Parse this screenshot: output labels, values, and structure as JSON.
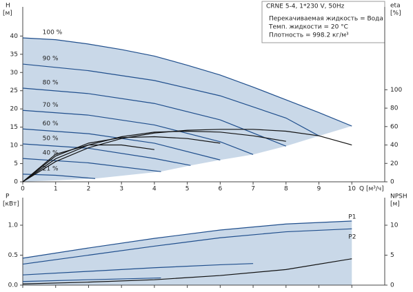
{
  "chart_data": [
    {
      "type": "line",
      "title": "CRNE 5-4, 1*230 V, 50Hz",
      "annotations": [
        "Перекачиваемая жидкость = Вода",
        "Темп. жидкости = 20 °C",
        "Плотность = 998.2 кг/м³"
      ],
      "y_label": "H",
      "y_unit": "[м]",
      "y2_label": "eta",
      "y2_unit": "[%]",
      "x_label": "Q [м³/ч]",
      "xlim": [
        0,
        11
      ],
      "xticks": [
        0,
        1,
        2,
        3,
        4,
        5,
        6,
        7,
        8,
        9,
        10
      ],
      "ylim": [
        0,
        48
      ],
      "yticks": [
        0,
        5,
        10,
        15,
        20,
        25,
        30,
        35,
        40
      ],
      "y2lim": [
        0,
        190
      ],
      "y2ticks": [
        0,
        20,
        40,
        60,
        80,
        100
      ],
      "fill_color": "#c9d8e8",
      "series": [
        {
          "name": "100 %",
          "color": "#1f4e8c",
          "x": [
            0,
            1,
            2,
            3,
            4,
            5,
            6,
            7,
            8,
            9,
            10
          ],
          "values": [
            39.5,
            39,
            37.8,
            36.3,
            34.5,
            32,
            29.3,
            26,
            22.5,
            19,
            15.3
          ]
        },
        {
          "name": "90 %",
          "color": "#1f4e8c",
          "x": [
            0,
            2,
            4,
            6,
            8,
            9
          ],
          "values": [
            32.3,
            30.5,
            27.8,
            23.6,
            17.5,
            12.6
          ]
        },
        {
          "name": "80 %",
          "color": "#1f4e8c",
          "x": [
            0,
            2,
            4,
            6,
            8
          ],
          "values": [
            25.7,
            24.2,
            21.5,
            17,
            9.8
          ]
        },
        {
          "name": "70 %",
          "color": "#1f4e8c",
          "x": [
            0,
            2,
            4,
            6,
            7
          ],
          "values": [
            19.6,
            18.3,
            15.6,
            11,
            7.5
          ]
        },
        {
          "name": "60 %",
          "color": "#1f4e8c",
          "x": [
            0,
            2,
            4,
            6
          ],
          "values": [
            14.5,
            13.2,
            10.6,
            6
          ]
        },
        {
          "name": "50 %",
          "color": "#1f4e8c",
          "x": [
            0,
            2,
            4,
            5.1
          ],
          "values": [
            10.4,
            9.2,
            6.4,
            4.5
          ]
        },
        {
          "name": "40 %",
          "color": "#1f4e8c",
          "x": [
            0,
            2,
            4.2
          ],
          "values": [
            6.4,
            5.2,
            2.8
          ]
        },
        {
          "name": "21 %",
          "color": "#1f4e8c",
          "x": [
            0,
            1,
            2.2
          ],
          "values": [
            2.1,
            1.8,
            0.9
          ]
        },
        {
          "color": "#111111",
          "axis": "y2",
          "x": [
            0,
            1,
            2,
            3,
            4,
            5,
            6,
            7,
            8,
            9,
            10
          ],
          "values": [
            0,
            22,
            37,
            47,
            53,
            56,
            57,
            57,
            55,
            50,
            40
          ]
        },
        {
          "color": "#111111",
          "axis": "y2",
          "x": [
            0,
            1,
            2,
            3,
            4,
            5,
            6,
            7,
            8
          ],
          "values": [
            0,
            25,
            40,
            49,
            54,
            55,
            54,
            50,
            44
          ]
        },
        {
          "color": "#111111",
          "axis": "y2",
          "x": [
            0,
            1,
            2,
            3,
            4,
            5,
            6
          ],
          "values": [
            0,
            28,
            42,
            48,
            49,
            47,
            42
          ]
        },
        {
          "color": "#111111",
          "axis": "y2",
          "x": [
            0,
            1,
            2,
            3,
            4
          ],
          "values": [
            0,
            30,
            40,
            40,
            35
          ]
        }
      ]
    },
    {
      "type": "line",
      "y_label": "P",
      "y_unit": "[кВт]",
      "y2_label": "NPSH",
      "y2_unit": "[м]",
      "xlim": [
        0,
        11
      ],
      "xticks": [
        0,
        1,
        2,
        3,
        4,
        5,
        6,
        7,
        8,
        9,
        10
      ],
      "ylim": [
        0,
        1.46
      ],
      "yticks": [
        {
          "value": 0,
          "label": "0.0"
        },
        0.5,
        {
          "value": 1,
          "label": "1.0"
        }
      ],
      "y2lim": [
        0,
        14.6
      ],
      "y2ticks": [
        0,
        5,
        10
      ],
      "fill_color": "#c9d8e8",
      "series": [
        {
          "name": "P1",
          "color": "#1f4e8c",
          "x": [
            0,
            2,
            4,
            6,
            8,
            10
          ],
          "values": [
            0.45,
            0.62,
            0.78,
            0.92,
            1.02,
            1.07
          ]
        },
        {
          "name": "P2",
          "color": "#1f4e8c",
          "x": [
            0,
            2,
            4,
            6,
            8,
            10
          ],
          "values": [
            0.35,
            0.5,
            0.65,
            0.79,
            0.89,
            0.94
          ]
        },
        {
          "color": "#1f4e8c",
          "x": [
            0,
            2,
            4,
            6,
            7
          ],
          "values": [
            0.17,
            0.23,
            0.29,
            0.34,
            0.36
          ]
        },
        {
          "color": "#1f4e8c",
          "x": [
            0,
            2,
            4.2
          ],
          "values": [
            0.06,
            0.09,
            0.12
          ]
        },
        {
          "color": "#111111",
          "axis": "y2",
          "x": [
            0,
            2,
            4,
            6,
            8,
            10
          ],
          "values": [
            0.2,
            0.5,
            0.9,
            1.6,
            2.6,
            4.4
          ]
        }
      ]
    }
  ]
}
